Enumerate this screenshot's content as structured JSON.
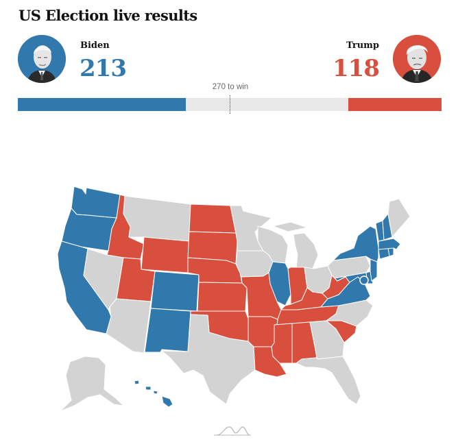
{
  "title": "US Election live results",
  "candidates": {
    "biden": {
      "name": "Biden",
      "electoral_votes": 213,
      "color": "#3178ad",
      "portrait_icon": "biden-portrait-icon"
    },
    "trump": {
      "name": "Trump",
      "electoral_votes": 118,
      "color": "#d94f3d",
      "portrait_icon": "trump-portrait-icon"
    }
  },
  "threshold_label": "270 to win",
  "threshold": 270,
  "total_electoral_votes": 538,
  "map": {
    "colors": {
      "biden": "#3178ad",
      "trump": "#d94f3d",
      "undecided": "#d3d3d3"
    },
    "states": {
      "biden": [
        "WA",
        "OR",
        "CA",
        "CO",
        "NM",
        "IL",
        "VA",
        "MD",
        "DE",
        "NJ",
        "NY",
        "CT",
        "RI",
        "MA",
        "VT",
        "NH",
        "HI",
        "DC"
      ],
      "trump": [
        "ID",
        "UT",
        "WY",
        "ND",
        "SD",
        "NE",
        "KS",
        "OK",
        "TX-none",
        "MO",
        "AR",
        "LA",
        "MS",
        "AL",
        "TN",
        "KY",
        "IN",
        "WV",
        "SC"
      ],
      "undecided": [
        "MT",
        "NV",
        "AZ",
        "TX",
        "MN",
        "IA",
        "WI",
        "MI",
        "OH",
        "PA",
        "ME",
        "NC",
        "GA",
        "FL",
        "AK"
      ]
    }
  },
  "footer_icon": "loading-wave-icon"
}
